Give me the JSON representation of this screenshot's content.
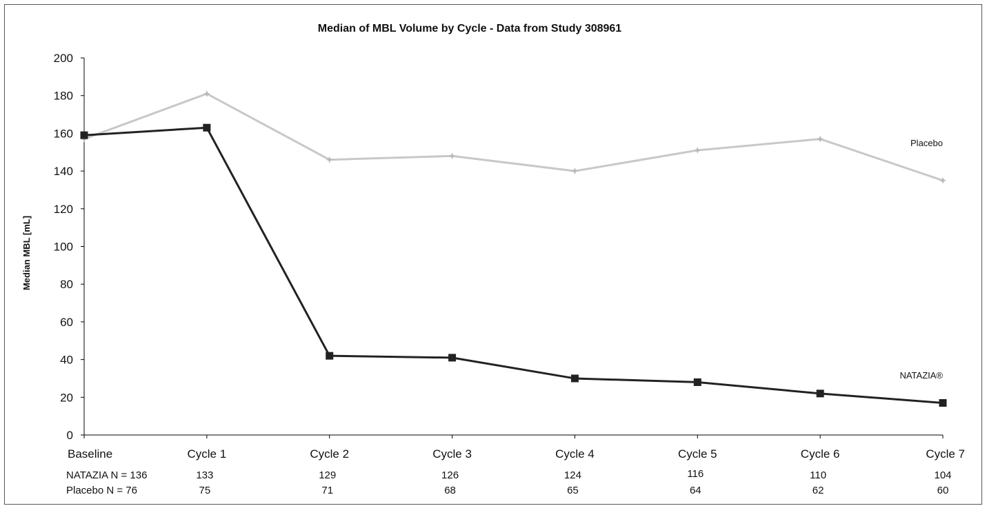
{
  "chart_data": {
    "type": "line",
    "title": "Median of MBL Volume by Cycle - Data from Study 308961",
    "ylabel": "Median MBL [mL]",
    "xlabel": "",
    "ylim": [
      0,
      200
    ],
    "yticks": [
      0,
      20,
      40,
      60,
      80,
      100,
      120,
      140,
      160,
      180,
      200
    ],
    "categories": [
      "Baseline",
      "Cycle 1",
      "Cycle 2",
      "Cycle 3",
      "Cycle 4",
      "Cycle 5",
      "Cycle 6",
      "Cycle 7"
    ],
    "grid": false,
    "series": [
      {
        "name": "Placebo",
        "color": "#c8c8c8",
        "marker": "star",
        "values": [
          157,
          181,
          146,
          148,
          140,
          151,
          157,
          135
        ]
      },
      {
        "name": "NATAZIA®",
        "color": "#222222",
        "marker": "square",
        "values": [
          159,
          163,
          42,
          41,
          30,
          28,
          22,
          17
        ]
      }
    ],
    "n_table": {
      "rows": [
        {
          "label": "NATAZIA  N = 136",
          "values": [
            "133",
            "129",
            "126",
            "124",
            "116",
            "110",
            "104"
          ]
        },
        {
          "label": "Placebo    N =   76",
          "values": [
            "75",
            "71",
            "68",
            "65",
            "64",
            "62",
            "60"
          ]
        }
      ]
    }
  }
}
